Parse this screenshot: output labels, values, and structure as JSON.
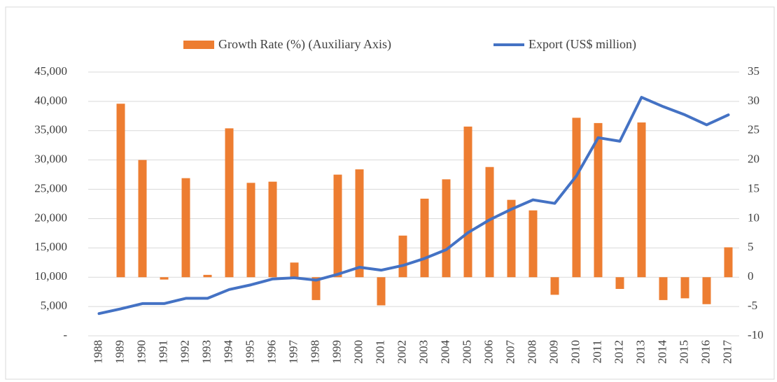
{
  "chart_data": {
    "type": "bar-line",
    "categories": [
      "1988",
      "1989",
      "1990",
      "1991",
      "1992",
      "1993",
      "1994",
      "1995",
      "1996",
      "1997",
      "1998",
      "1999",
      "2000",
      "2001",
      "2002",
      "2003",
      "2004",
      "2005",
      "2006",
      "2007",
      "2008",
      "2009",
      "2010",
      "2011",
      "2012",
      "2013",
      "2014",
      "2015",
      "2016",
      "2017"
    ],
    "series": [
      {
        "name": "Growth Rate (%) (Auxiliary Axis)",
        "type": "bar",
        "axis": "y2",
        "color": "#ed7d31",
        "values": [
          null,
          29.6,
          20,
          -0.4,
          16.9,
          0.4,
          25.4,
          16.1,
          16.3,
          2.5,
          -3.9,
          17.5,
          18.4,
          -4.8,
          7.1,
          13.4,
          16.7,
          25.7,
          18.8,
          13.2,
          11.4,
          -3,
          27.2,
          26.3,
          -2,
          26.4,
          -3.9,
          -3.6,
          -4.6,
          5.1
        ]
      },
      {
        "name": "Export (US$ million)",
        "type": "line",
        "color": "#4472c4",
        "values": [
          3800,
          4600,
          5500,
          5500,
          6400,
          6400,
          7900,
          8700,
          9700,
          9900,
          9500,
          10500,
          11700,
          11200,
          12000,
          13200,
          14700,
          17600,
          19800,
          21600,
          23200,
          22600,
          27300,
          33800,
          33200,
          40700,
          39100,
          37700,
          36000,
          37700
        ]
      }
    ],
    "ylim": [
      0,
      45000
    ],
    "yticks": [
      {
        "value": 0,
        "label": "-"
      },
      {
        "value": 5000,
        "label": "5,000"
      },
      {
        "value": 10000,
        "label": "10,000"
      },
      {
        "value": 15000,
        "label": "15,000"
      },
      {
        "value": 20000,
        "label": "20,000"
      },
      {
        "value": 25000,
        "label": "25,000"
      },
      {
        "value": 30000,
        "label": "30,000"
      },
      {
        "value": 35000,
        "label": "35,000"
      },
      {
        "value": 40000,
        "label": "40,000"
      },
      {
        "value": 45000,
        "label": "45,000"
      }
    ],
    "y2lim": [
      -10,
      35
    ],
    "y2ticks": [
      -10,
      -5,
      0,
      5,
      10,
      15,
      20,
      25,
      30,
      35
    ],
    "grid": true,
    "legend": "top"
  }
}
